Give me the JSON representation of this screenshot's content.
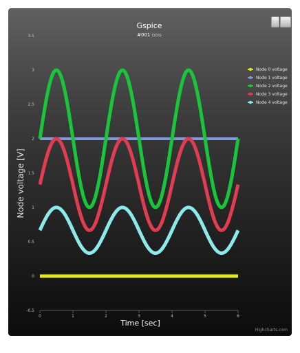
{
  "chart_data": {
    "type": "line",
    "title": "Gspice",
    "subtitle": "#001 ▫▫▫",
    "xlabel": "Time [sec]",
    "ylabel": "Node voltage [V]",
    "xlim": [
      0,
      6
    ],
    "ylim": [
      -0.5,
      3.5
    ],
    "x_ticks": [
      "0",
      "1",
      "2",
      "3",
      "4",
      "5",
      "6"
    ],
    "y_ticks": [
      "-0.5",
      "0",
      "0.5",
      "1",
      "1.5",
      "2",
      "2.5",
      "3",
      "3.5"
    ],
    "legend_position": "top-right",
    "credits": "Highcharts.com",
    "series": [
      {
        "name": "Node 0 voltage",
        "color": "#e4ea1c",
        "shape": "constant",
        "value": 0
      },
      {
        "name": "Node 1 voltage",
        "color": "#7f9ad6",
        "shape": "constant",
        "value": 2
      },
      {
        "name": "Node 2 voltage",
        "color": "#19c53a",
        "shape": "sine",
        "offset": 2,
        "amplitude": 1,
        "period": 2
      },
      {
        "name": "Node 3 voltage",
        "color": "#e03c52",
        "shape": "sine",
        "offset": 1.333,
        "amplitude": 0.667,
        "period": 2
      },
      {
        "name": "Node 4 voltage",
        "color": "#8ee9e9",
        "shape": "sine",
        "offset": 0.667,
        "amplitude": 0.333,
        "period": 2
      }
    ]
  }
}
